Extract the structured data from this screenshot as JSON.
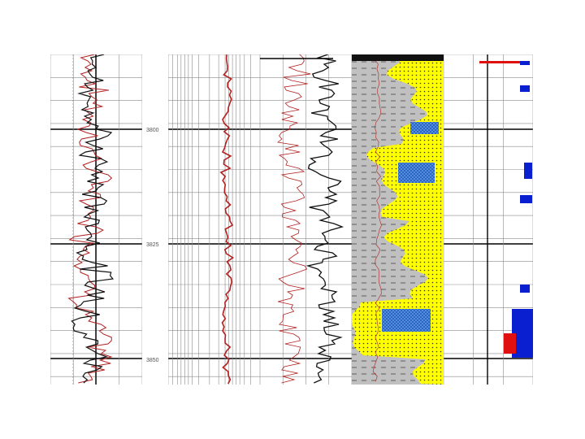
{
  "depth_labels": [
    "3800",
    "3825",
    "3850"
  ],
  "colors": {
    "grid": "#8a8a8a",
    "grid_major": "#000000",
    "curve_red": "#b22020",
    "curve_black": "#111111",
    "shale_fill": "#c0c0c0",
    "sand_fill": "#ffff00",
    "porosity_fill": "#4f8fe8",
    "blue_fill": "#0a1fd0",
    "red_fill": "#e01010"
  },
  "tracks": [
    {
      "name": "gamma-ray-track",
      "curves": [
        "black",
        "red"
      ]
    },
    {
      "name": "resistivity-log-track",
      "curves": [
        "red"
      ]
    },
    {
      "name": "density-neutron-track",
      "curves": [
        "black",
        "red"
      ]
    },
    {
      "name": "lithology-track",
      "fills": [
        "shale",
        "sand",
        "porosity"
      ]
    },
    {
      "name": "fluid-track",
      "fills": [
        "blue",
        "red"
      ]
    }
  ]
}
